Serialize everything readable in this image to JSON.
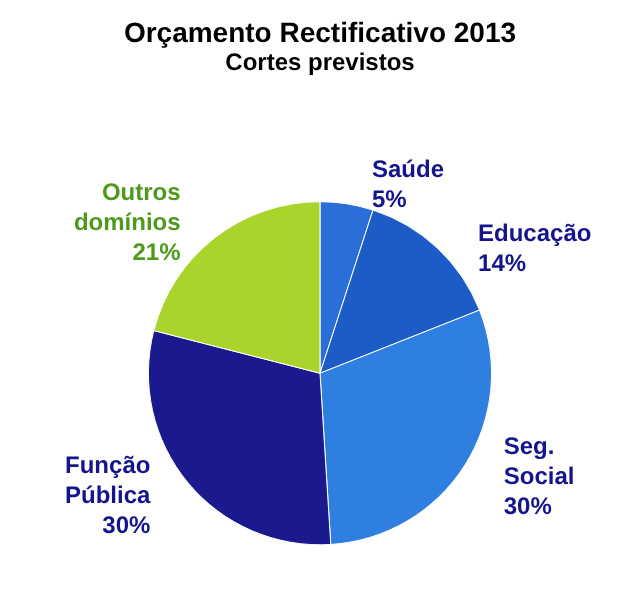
{
  "chart_data": {
    "type": "pie",
    "title": "Orçamento Rectificativo 2013",
    "subtitle": "Cortes previstos",
    "categories": [
      "Saúde",
      "Educação",
      "Seg. Social",
      "Função Pública",
      "Outros domínios"
    ],
    "values": [
      5,
      14,
      30,
      30,
      21
    ],
    "colors": [
      "#2a6fd8",
      "#1d5cc6",
      "#2f7fe0",
      "#1a1a8e",
      "#a8d42c"
    ],
    "value_labels": [
      "5%",
      "14%",
      "30%",
      "30%",
      "21%"
    ]
  }
}
